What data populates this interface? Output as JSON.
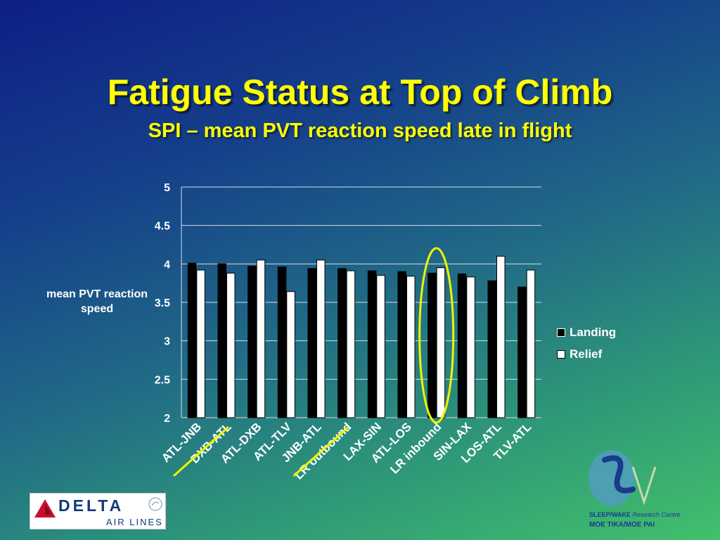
{
  "slide": {
    "title": "Fatigue Status at Top of Climb",
    "subtitle": "SPI – mean PVT reaction speed late in flight"
  },
  "chart_data": {
    "type": "bar",
    "categories": [
      "ATL-JNB",
      "DXB-ATL",
      "ATL-DXB",
      "ATL-TLV",
      "JNB-ATL",
      "LR outbound",
      "LAX-SIN",
      "ATL-LOS",
      "LR inbound",
      "SIN-LAX",
      "LOS-ATL",
      "TLV-ATL"
    ],
    "series": [
      {
        "name": "Landing",
        "color": "#000000",
        "values": [
          4.01,
          4.0,
          3.97,
          3.96,
          3.94,
          3.94,
          3.91,
          3.9,
          3.88,
          3.87,
          3.78,
          3.7
        ]
      },
      {
        "name": "Relief",
        "color": "#ffffff",
        "values": [
          3.92,
          3.88,
          4.05,
          3.64,
          4.05,
          3.91,
          3.85,
          3.84,
          3.95,
          3.83,
          4.1,
          3.92
        ]
      }
    ],
    "ylabel": "mean PVT reaction speed",
    "xlabel": "",
    "ylim": [
      2,
      5
    ],
    "yticks": [
      "2",
      "2.5",
      "3",
      "3.5",
      "4",
      "4.5",
      "5"
    ],
    "grid": true,
    "legend": "right",
    "annotations": {
      "highlight_ellipse_category": "LR inbound",
      "underlined_categories": [
        "DXB-ATL",
        "LR outbound"
      ],
      "highlight_color": "#f2f200"
    }
  },
  "logos": {
    "airline_name": "DELTA",
    "airline_sub": "AIR LINES",
    "seal_text": "SKYTEAM",
    "research_name": "SLEEP/WAKE",
    "research_suffix": "Research Centre",
    "research_motto": "MOE TIKA/MOE PAI"
  }
}
